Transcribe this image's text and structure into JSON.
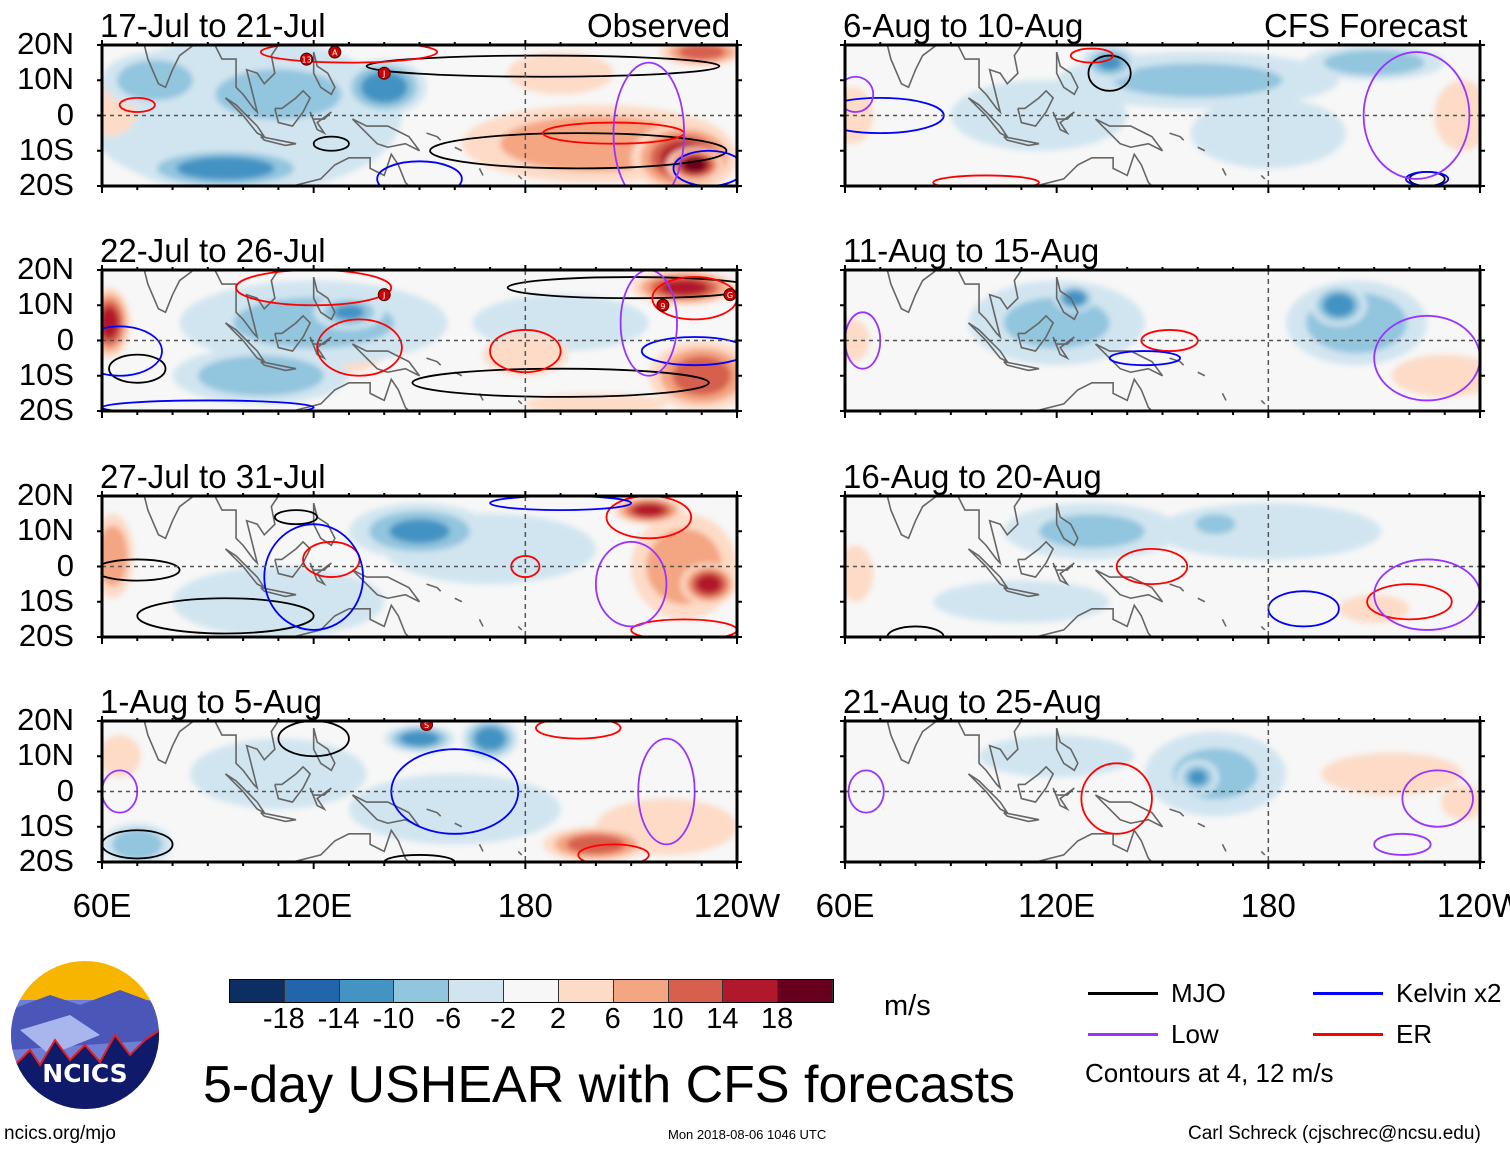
{
  "chart_data": {
    "type": "heatmap",
    "title": "5-day USHEAR with CFS forecasts",
    "units": "m/s",
    "lon_range": [
      60,
      240
    ],
    "lat_range": [
      -20,
      20
    ],
    "y_ticks": [
      "20N",
      "10N",
      "0",
      "10S",
      "20S"
    ],
    "x_ticks": [
      "60E",
      "120E",
      "180",
      "120W"
    ],
    "column_labels": {
      "left": "Observed",
      "right": "CFS Forecast"
    },
    "colorbar": {
      "levels": [
        "-18",
        "-14",
        "-10",
        "-6",
        "-2",
        "2",
        "6",
        "10",
        "14",
        "18"
      ],
      "colors": [
        "#0b2f63",
        "#2166ac",
        "#4393c3",
        "#92c5de",
        "#d1e5f0",
        "#f7f7f7",
        "#fddbc7",
        "#f4a582",
        "#d6604d",
        "#b2182b",
        "#67001f"
      ]
    },
    "legend": [
      {
        "label": "MJO",
        "color": "#000000"
      },
      {
        "label": "Kelvin x2",
        "color": "#0000ff"
      },
      {
        "label": "Low",
        "color": "#9933ff"
      },
      {
        "label": "ER",
        "color": "#ff0000"
      }
    ],
    "contour_note": "Contours at 4, 12 m/s",
    "panels": [
      {
        "title": "17-Jul to 21-Jul",
        "col": 0,
        "row": 0,
        "anomalies": [
          [
            100,
            0,
            45,
            22,
            -4
          ],
          [
            110,
            6,
            25,
            10,
            -8
          ],
          [
            140,
            8,
            12,
            8,
            -12
          ],
          [
            95,
            -15,
            25,
            6,
            -12
          ],
          [
            75,
            10,
            15,
            8,
            -7
          ],
          [
            62,
            2,
            8,
            8,
            6
          ],
          [
            200,
            -8,
            38,
            11,
            8
          ],
          [
            190,
            12,
            15,
            6,
            3
          ],
          [
            155,
            -10,
            15,
            8,
            2
          ],
          [
            225,
            -12,
            15,
            10,
            16
          ],
          [
            228,
            -14,
            8,
            5,
            20
          ],
          [
            230,
            18,
            12,
            4,
            14
          ]
        ],
        "contours": [
          [
            "MJO",
            195,
            -10,
            42,
            5
          ],
          [
            "MJO",
            185,
            14,
            50,
            3
          ],
          [
            "MJO",
            125,
            -8,
            5,
            2
          ],
          [
            "ER",
            205,
            -5,
            20,
            3
          ],
          [
            "ER",
            70,
            3,
            5,
            2
          ],
          [
            "ER",
            130,
            18,
            25,
            3
          ],
          [
            "Kelvin",
            150,
            -18,
            12,
            5
          ],
          [
            "Kelvin",
            232,
            -15,
            10,
            5
          ],
          [
            "Low",
            215,
            -5,
            10,
            20
          ]
        ],
        "storms": [
          "13",
          "A",
          "J"
        ],
        "storm_pos": [
          [
            118,
            16
          ],
          [
            126,
            18
          ],
          [
            140,
            12
          ]
        ]
      },
      {
        "title": "22-Jul to 26-Jul",
        "col": 0,
        "row": 1,
        "anomalies": [
          [
            120,
            5,
            38,
            12,
            -6
          ],
          [
            130,
            8,
            10,
            5,
            -10
          ],
          [
            105,
            -10,
            25,
            8,
            -8
          ],
          [
            190,
            5,
            25,
            8,
            -4
          ],
          [
            180,
            -4,
            12,
            6,
            6
          ],
          [
            130,
            -3,
            10,
            6,
            4
          ],
          [
            62,
            5,
            6,
            10,
            15
          ],
          [
            225,
            15,
            15,
            5,
            18
          ],
          [
            230,
            -10,
            15,
            10,
            14
          ],
          [
            200,
            -18,
            20,
            3,
            3
          ]
        ],
        "contours": [
          [
            "MJO",
            190,
            -12,
            42,
            4
          ],
          [
            "MJO",
            210,
            15,
            35,
            3
          ],
          [
            "MJO",
            70,
            -8,
            8,
            4
          ],
          [
            "ER",
            180,
            -3,
            10,
            6
          ],
          [
            "ER",
            133,
            -2,
            12,
            8
          ],
          [
            "ER",
            120,
            15,
            22,
            5
          ],
          [
            "ER",
            228,
            12,
            12,
            6
          ],
          [
            "Kelvin",
            65,
            -3,
            12,
            7
          ],
          [
            "Kelvin",
            228,
            -3,
            15,
            4
          ],
          [
            "Kelvin",
            90,
            -19,
            30,
            2
          ],
          [
            "Low",
            215,
            5,
            8,
            15
          ]
        ],
        "storms": [
          "J",
          "9",
          "G"
        ],
        "storm_pos": [
          [
            140,
            13
          ],
          [
            219,
            10
          ],
          [
            238,
            13
          ]
        ]
      },
      {
        "title": "27-Jul to 31-Jul",
        "col": 0,
        "row": 2,
        "anomalies": [
          [
            150,
            10,
            20,
            8,
            -10
          ],
          [
            170,
            5,
            30,
            10,
            -4
          ],
          [
            110,
            -10,
            30,
            10,
            -3
          ],
          [
            63,
            3,
            6,
            12,
            8
          ],
          [
            225,
            0,
            15,
            15,
            10
          ],
          [
            215,
            16,
            10,
            4,
            16
          ],
          [
            232,
            -5,
            8,
            6,
            16
          ],
          [
            125,
            3,
            10,
            6,
            2
          ]
        ],
        "contours": [
          [
            "MJO",
            95,
            -14,
            25,
            5
          ],
          [
            "MJO",
            70,
            -1,
            12,
            3
          ],
          [
            "MJO",
            115,
            14,
            6,
            2
          ],
          [
            "ER",
            125,
            2,
            8,
            5
          ],
          [
            "ER",
            180,
            0,
            4,
            3
          ],
          [
            "ER",
            215,
            14,
            12,
            6
          ],
          [
            "ER",
            225,
            -18,
            15,
            3
          ],
          [
            "Kelvin",
            120,
            -3,
            14,
            15
          ],
          [
            "Kelvin",
            190,
            18,
            20,
            2
          ],
          [
            "Low",
            210,
            -5,
            10,
            12
          ]
        ],
        "storms": [],
        "storm_pos": []
      },
      {
        "title": "1-Aug to 5-Aug",
        "col": 0,
        "row": 3,
        "anomalies": [
          [
            150,
            15,
            10,
            4,
            -12
          ],
          [
            170,
            15,
            8,
            6,
            -12
          ],
          [
            110,
            5,
            25,
            10,
            -5
          ],
          [
            160,
            -5,
            30,
            10,
            -3
          ],
          [
            200,
            -15,
            15,
            5,
            12
          ],
          [
            220,
            -10,
            20,
            8,
            5
          ],
          [
            70,
            -15,
            10,
            6,
            -8
          ],
          [
            65,
            10,
            6,
            6,
            4
          ]
        ],
        "contours": [
          [
            "MJO",
            120,
            15,
            10,
            5
          ],
          [
            "MJO",
            70,
            -15,
            10,
            4
          ],
          [
            "MJO",
            150,
            -20,
            10,
            2
          ],
          [
            "Kelvin",
            160,
            0,
            18,
            12
          ],
          [
            "ER",
            195,
            18,
            12,
            3
          ],
          [
            "ER",
            205,
            -18,
            10,
            3
          ],
          [
            "Low",
            220,
            0,
            8,
            15
          ],
          [
            "Low",
            65,
            0,
            5,
            6
          ]
        ],
        "storms": [
          "S"
        ],
        "storm_pos": [
          [
            152,
            19
          ]
        ]
      },
      {
        "title": "6-Aug to 10-Aug",
        "col": 1,
        "row": 0,
        "anomalies": [
          [
            160,
            10,
            40,
            8,
            -6
          ],
          [
            135,
            15,
            8,
            5,
            -10
          ],
          [
            210,
            15,
            20,
            5,
            -8
          ],
          [
            180,
            -5,
            22,
            10,
            -4
          ],
          [
            62,
            0,
            6,
            8,
            4
          ],
          [
            235,
            0,
            8,
            10,
            4
          ],
          [
            115,
            0,
            25,
            10,
            -3
          ]
        ],
        "contours": [
          [
            "MJO",
            135,
            12,
            6,
            5
          ],
          [
            "MJO",
            225,
            -18,
            5,
            2
          ],
          [
            "Kelvin",
            70,
            0,
            18,
            5
          ],
          [
            "Kelvin",
            225,
            -18,
            6,
            2
          ],
          [
            "ER",
            130,
            17,
            6,
            2
          ],
          [
            "ER",
            100,
            -19,
            15,
            2
          ],
          [
            "Low",
            222,
            0,
            15,
            18
          ],
          [
            "Low",
            63,
            6,
            5,
            5
          ]
        ],
        "storms": [],
        "storm_pos": []
      },
      {
        "title": "11-Aug to 15-Aug",
        "col": 1,
        "row": 1,
        "anomalies": [
          [
            120,
            5,
            25,
            12,
            -6
          ],
          [
            125,
            12,
            6,
            4,
            -12
          ],
          [
            205,
            5,
            20,
            12,
            -8
          ],
          [
            200,
            10,
            8,
            6,
            -12
          ],
          [
            230,
            -10,
            15,
            6,
            3
          ],
          [
            62,
            0,
            5,
            6,
            3
          ]
        ],
        "contours": [
          [
            "ER",
            152,
            0,
            8,
            3
          ],
          [
            "Kelvin",
            145,
            -5,
            10,
            2
          ],
          [
            "Low",
            225,
            -5,
            15,
            12
          ],
          [
            "Low",
            65,
            0,
            5,
            8
          ]
        ],
        "storms": [],
        "storm_pos": []
      },
      {
        "title": "16-Aug to 20-Aug",
        "col": 1,
        "row": 2,
        "anomalies": [
          [
            130,
            10,
            25,
            8,
            -6
          ],
          [
            180,
            10,
            32,
            8,
            -4
          ],
          [
            165,
            12,
            8,
            4,
            -8
          ],
          [
            63,
            -2,
            5,
            8,
            6
          ],
          [
            210,
            -12,
            10,
            4,
            3
          ],
          [
            110,
            -10,
            25,
            6,
            -3
          ]
        ],
        "contours": [
          [
            "ER",
            147,
            0,
            10,
            5
          ],
          [
            "ER",
            220,
            -10,
            12,
            5
          ],
          [
            "Kelvin",
            190,
            -12,
            10,
            5
          ],
          [
            "MJO",
            80,
            -20,
            8,
            3
          ],
          [
            "Low",
            225,
            -8,
            15,
            10
          ]
        ],
        "storms": [],
        "storm_pos": []
      },
      {
        "title": "21-Aug to 25-Aug",
        "col": 1,
        "row": 3,
        "anomalies": [
          [
            165,
            5,
            20,
            12,
            -6
          ],
          [
            160,
            4,
            6,
            5,
            -10
          ],
          [
            120,
            10,
            22,
            6,
            -4
          ],
          [
            215,
            5,
            20,
            6,
            3
          ],
          [
            235,
            -3,
            6,
            5,
            5
          ],
          [
            95,
            -10,
            12,
            4,
            2
          ]
        ],
        "contours": [
          [
            "ER",
            137,
            -2,
            10,
            10
          ],
          [
            "Low",
            228,
            -2,
            10,
            8
          ],
          [
            "Low",
            218,
            -15,
            8,
            3
          ],
          [
            "Low",
            66,
            0,
            5,
            6
          ]
        ],
        "storms": [],
        "storm_pos": []
      }
    ]
  },
  "footer": {
    "site": "ncics.org/mjo",
    "timestamp": "Mon 2018-08-06 1046 UTC",
    "credit": "Carl Schreck (cjschrec@ncsu.edu)",
    "logo_text": "NCICS"
  }
}
